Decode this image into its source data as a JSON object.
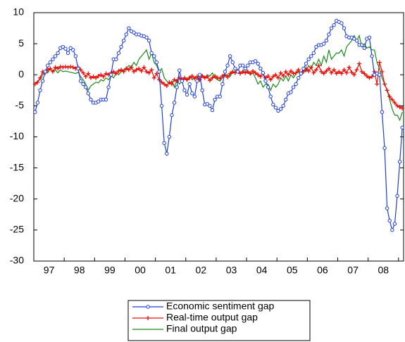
{
  "chart_data": {
    "type": "line",
    "categories": [
      null,
      null,
      null,
      null,
      null,
      null,
      "97",
      null,
      null,
      null,
      null,
      null,
      null,
      null,
      null,
      null,
      null,
      null,
      "98",
      null,
      null,
      null,
      null,
      null,
      null,
      null,
      null,
      null,
      null,
      null,
      "99",
      null,
      null,
      null,
      null,
      null,
      null,
      null,
      null,
      null,
      null,
      null,
      "00",
      null,
      null,
      null,
      null,
      null,
      null,
      null,
      null,
      null,
      null,
      null,
      "01",
      null,
      null,
      null,
      null,
      null,
      null,
      null,
      null,
      null,
      null,
      null,
      "02",
      null,
      null,
      null,
      null,
      null,
      null,
      null,
      null,
      null,
      null,
      null,
      "03",
      null,
      null,
      null,
      null,
      null,
      null,
      null,
      null,
      null,
      null,
      null,
      "04",
      null,
      null,
      null,
      null,
      null,
      null,
      null,
      null,
      null,
      null,
      null,
      "05",
      null,
      null,
      null,
      null,
      null,
      null,
      null,
      null,
      null,
      null,
      null,
      "06",
      null,
      null,
      null,
      null,
      null,
      null,
      null,
      null,
      null,
      null,
      null,
      "07",
      null,
      null,
      null,
      null,
      null,
      null,
      null,
      null,
      null,
      null,
      null,
      "08",
      null,
      null,
      null,
      null,
      null,
      null,
      null
    ],
    "series": [
      {
        "name": "Economic sentiment gap",
        "color": "#1f3fd6",
        "marker": "circle",
        "values": [
          -6,
          -4.5,
          -2.5,
          -1,
          0.5,
          1.5,
          2,
          2.5,
          3,
          3.5,
          4.3,
          4.5,
          4.2,
          3.5,
          4.3,
          4,
          3,
          1,
          -1,
          -1.5,
          -2,
          -3,
          -4,
          -4.5,
          -4.5,
          -4.3,
          -4,
          -4,
          -4,
          -2,
          0,
          2.5,
          2.5,
          3.5,
          4.5,
          5.5,
          6.5,
          7.5,
          7,
          6.8,
          6.5,
          6.5,
          6.3,
          6.2,
          6,
          5.5,
          3.5,
          3,
          2,
          0.5,
          -5,
          -11,
          -12.7,
          -10,
          -6.5,
          -4.5,
          -2,
          0.7,
          -1,
          -2.5,
          -3.2,
          -1.5,
          -3,
          -3.5,
          -1,
          0,
          -2.5,
          -4.8,
          -4.7,
          -5,
          -5.7,
          -4,
          -3.5,
          -3.5,
          -1.5,
          0.5,
          1.5,
          3,
          2,
          1,
          0.5,
          1.5,
          1.5,
          1,
          1.5,
          2,
          2,
          2.2,
          1.8,
          1,
          0.3,
          -1,
          -2,
          -3.5,
          -4.8,
          -5.3,
          -5.8,
          -5.5,
          -5,
          -4,
          -3,
          -2.8,
          -2,
          -1.5,
          -0.5,
          0.2,
          1,
          1.8,
          2.5,
          3,
          3.5,
          4.5,
          4.8,
          4.8,
          5,
          5.5,
          6.5,
          7.5,
          8,
          8.7,
          8.5,
          8.3,
          7.5,
          6.2,
          6,
          6,
          5.8,
          5.5,
          4.8,
          4.8,
          4.3,
          5.8,
          6,
          3,
          0,
          0.2,
          0,
          -6,
          -11.8,
          -21.5,
          -23.5,
          -25,
          -24,
          -19.5,
          -14,
          -8.5
        ]
      },
      {
        "name": "Real-time output gap",
        "color": "#e8120c",
        "marker": "plus",
        "values": [
          -1.5,
          -1.2,
          -0.5,
          0.5,
          0.3,
          0.8,
          1,
          0.5,
          1.2,
          1,
          1.3,
          1.2,
          1.3,
          1.2,
          1.3,
          1.2,
          1,
          1.2,
          0.8,
          0.3,
          -0.3,
          0.2,
          -0.5,
          -0.3,
          -0.5,
          -0.2,
          0,
          -0.3,
          0.2,
          0,
          0.3,
          0.5,
          0.2,
          0.6,
          0.8,
          0.5,
          1,
          0.8,
          1.2,
          0.5,
          0.8,
          1,
          0.6,
          1.2,
          0.5,
          0.3,
          0.8,
          -0.5,
          0.2,
          -0.8,
          -1.2,
          -1.5,
          -1.8,
          -1.2,
          -1.5,
          -0.8,
          -1,
          -0.5,
          -0.8,
          -0.5,
          -0.8,
          -0.5,
          -0.2,
          -0.6,
          -0.3,
          -0.8,
          -0.2,
          -0.5,
          -0.3,
          -0.9,
          -0.5,
          -0.2,
          -0.5,
          -0.6,
          -0.2,
          0,
          -0.4,
          0.2,
          0.5,
          0.3,
          0.6,
          0.2,
          0.5,
          0.3,
          0.5,
          0.2,
          0.6,
          0.3,
          0,
          -0.3,
          0.2,
          -0.5,
          -0.2,
          -0.8,
          -0.3,
          0,
          -0.5,
          0.3,
          -0.2,
          0.5,
          0,
          0.6,
          0.2,
          0.3,
          0.8,
          0.2,
          0.5,
          1,
          0.6,
          1.2,
          0.3,
          0.8,
          1.5,
          0.5,
          0.2,
          0.6,
          1,
          0.3,
          0.8,
          0.2,
          0.5,
          0.2,
          0.8,
          0.3,
          1.2,
          0.4,
          0,
          0.8,
          1.8,
          0.5,
          0.2,
          -0.2,
          -0.5,
          -0.3,
          0.5,
          -1.5,
          2,
          0.5,
          -1.5,
          -2.5,
          -3.5,
          -4,
          -4.5,
          -5,
          -5.2,
          -5.4
        ]
      },
      {
        "name": "Final output gap",
        "color": "#1a8a1a",
        "values": [
          -1.5,
          -1,
          -0.8,
          0,
          0.5,
          0.3,
          1,
          0.5,
          0.8,
          0.3,
          0.8,
          0.5,
          0.6,
          0.5,
          0.4,
          0.3,
          0.2,
          0.4,
          -0.3,
          -0.8,
          -1.5,
          -2.5,
          -1.8,
          -1.5,
          -1.2,
          -1.3,
          -0.8,
          -1,
          -0.5,
          -0.8,
          -0.2,
          -0.5,
          0.3,
          0,
          0.5,
          0.8,
          1,
          1.5,
          1.2,
          2,
          1.5,
          2.5,
          3,
          3.5,
          4,
          2.5,
          3.5,
          2,
          1.5,
          0.5,
          1,
          -0.5,
          -1,
          -1.5,
          -1,
          -2,
          -0.8,
          -1.5,
          -1,
          -0.5,
          -1,
          -0.2,
          -0.8,
          -0.5,
          -0.3,
          -1,
          0,
          -0.5,
          0,
          -0.2,
          0.3,
          -0.5,
          -0.8,
          -1,
          -0.5,
          -0.2,
          0,
          -0.3,
          0.5,
          0.3,
          0.8,
          0.2,
          0.5,
          1,
          0.5,
          0,
          0.3,
          -0.5,
          -1.5,
          -1,
          -2,
          -1.5,
          -1.5,
          -2.5,
          -1.5,
          -2,
          -1.5,
          -0.5,
          -1,
          -0.2,
          -1,
          0,
          -0.5,
          0.2,
          0.5,
          0,
          1,
          0.5,
          1.5,
          1,
          2,
          1.5,
          2.5,
          1.5,
          3,
          2,
          4,
          2.5,
          3,
          3.5,
          3.5,
          4,
          3,
          4.5,
          5,
          5.5,
          6.3,
          5.5,
          6.3,
          4.5,
          5,
          4.3,
          4.5,
          4,
          4,
          2,
          1,
          -0.5,
          -1.5,
          -2.5,
          -4,
          -5.5,
          -6.5,
          -6.5,
          -7.3,
          -6
        ]
      }
    ],
    "ylim": [
      -30,
      10
    ],
    "yticks": [
      10,
      5,
      0,
      -5,
      -10,
      -15,
      -20,
      -25,
      -30
    ]
  }
}
